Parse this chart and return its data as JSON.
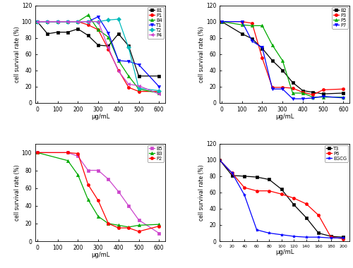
{
  "panel1": {
    "xlabel": "μg/mL",
    "ylabel": "cell survival rate (%)",
    "xlim": [
      -10,
      630
    ],
    "ylim": [
      0,
      120
    ],
    "xticks": [
      0,
      100,
      200,
      300,
      400,
      500,
      600
    ],
    "yticks": [
      0,
      20,
      40,
      60,
      80,
      100,
      120
    ],
    "series": [
      {
        "name": "B1",
        "x": [
          0,
          50,
          100,
          150,
          200,
          250,
          300,
          350,
          400,
          450,
          500,
          600
        ],
        "y": [
          100,
          85,
          87,
          87,
          91,
          83,
          71,
          70,
          85,
          70,
          33,
          33
        ],
        "color": "#000000",
        "marker": "s"
      },
      {
        "name": "P1",
        "x": [
          0,
          50,
          100,
          150,
          200,
          250,
          300,
          350,
          400,
          450,
          500,
          600
        ],
        "y": [
          100,
          100,
          100,
          100,
          100,
          96,
          90,
          66,
          40,
          19,
          14,
          14
        ],
        "color": "#ff0000",
        "marker": "o"
      },
      {
        "name": "B4",
        "x": [
          0,
          50,
          100,
          150,
          200,
          250,
          300,
          350,
          400,
          450,
          500,
          600
        ],
        "y": [
          100,
          100,
          100,
          100,
          100,
          108,
          90,
          81,
          52,
          33,
          17,
          12
        ],
        "color": "#00aa00",
        "marker": "^"
      },
      {
        "name": "T1",
        "x": [
          0,
          50,
          100,
          150,
          200,
          250,
          300,
          350,
          400,
          450,
          500,
          600
        ],
        "y": [
          100,
          100,
          100,
          100,
          100,
          100,
          106,
          86,
          52,
          51,
          47,
          20
        ],
        "color": "#0000ff",
        "marker": "v"
      },
      {
        "name": "T2",
        "x": [
          0,
          50,
          100,
          150,
          200,
          250,
          300,
          350,
          400,
          450,
          500,
          600
        ],
        "y": [
          100,
          100,
          100,
          100,
          100,
          100,
          100,
          102,
          103,
          68,
          18,
          15
        ],
        "color": "#00bbbb",
        "marker": "D"
      },
      {
        "name": "P4",
        "x": [
          0,
          50,
          100,
          150,
          200,
          250,
          300,
          350,
          400,
          450,
          500,
          600
        ],
        "y": [
          100,
          100,
          100,
          100,
          100,
          100,
          100,
          68,
          39,
          23,
          21,
          11
        ],
        "color": "#cc44cc",
        "marker": "<"
      }
    ]
  },
  "panel2": {
    "xlabel": "μg/mL",
    "ylabel": "cell survival rate (%)",
    "xlim": [
      -10,
      630
    ],
    "ylim": [
      0,
      120
    ],
    "xticks": [
      0,
      100,
      200,
      300,
      400,
      500,
      600
    ],
    "yticks": [
      0,
      20,
      40,
      60,
      80,
      100,
      120
    ],
    "series": [
      {
        "name": "B2",
        "x": [
          0,
          100,
          150,
          200,
          250,
          300,
          350,
          400,
          450,
          500,
          600
        ],
        "y": [
          100,
          85,
          79,
          67,
          52,
          40,
          25,
          15,
          13,
          11,
          12
        ],
        "color": "#000000",
        "marker": "s"
      },
      {
        "name": "P3",
        "x": [
          0,
          100,
          150,
          200,
          250,
          300,
          350,
          400,
          450,
          500,
          600
        ],
        "y": [
          100,
          100,
          98,
          55,
          19,
          19,
          18,
          13,
          10,
          16,
          17
        ],
        "color": "#ff0000",
        "marker": "o"
      },
      {
        "name": "P5",
        "x": [
          0,
          100,
          150,
          200,
          250,
          300,
          350,
          400,
          450,
          500,
          600
        ],
        "y": [
          100,
          96,
          95,
          95,
          71,
          52,
          12,
          12,
          7,
          7,
          7
        ],
        "color": "#00aa00",
        "marker": "^"
      },
      {
        "name": "P7",
        "x": [
          0,
          100,
          150,
          200,
          250,
          300,
          350,
          400,
          450,
          500,
          600
        ],
        "y": [
          100,
          100,
          76,
          68,
          17,
          17,
          5,
          5,
          6,
          8,
          6
        ],
        "color": "#0000ff",
        "marker": "v"
      }
    ]
  },
  "panel3": {
    "xlabel": "μg/mL",
    "ylabel": "cell survival rate (%)",
    "xlim": [
      -10,
      630
    ],
    "ylim": [
      0,
      110
    ],
    "xticks": [
      0,
      100,
      200,
      300,
      400,
      500,
      600
    ],
    "yticks": [
      0,
      20,
      40,
      60,
      80,
      100
    ],
    "series": [
      {
        "name": "B5",
        "x": [
          0,
          150,
          200,
          250,
          300,
          350,
          400,
          450,
          500,
          600
        ],
        "y": [
          100,
          100,
          96,
          80,
          80,
          70,
          56,
          40,
          24,
          9
        ],
        "color": "#cc44cc",
        "marker": "s"
      },
      {
        "name": "B3",
        "x": [
          0,
          150,
          200,
          250,
          300,
          350,
          400,
          450,
          500,
          600
        ],
        "y": [
          100,
          91,
          75,
          47,
          28,
          20,
          18,
          16,
          18,
          19
        ],
        "color": "#00aa00",
        "marker": "^"
      },
      {
        "name": "P2",
        "x": [
          0,
          150,
          200,
          250,
          300,
          350,
          400,
          450,
          500,
          600
        ],
        "y": [
          100,
          100,
          99,
          64,
          46,
          20,
          15,
          15,
          11,
          17
        ],
        "color": "#ff0000",
        "marker": "o"
      }
    ]
  },
  "panel4": {
    "xlabel": "μg/mL",
    "ylabel": "cell survival rate (%)",
    "xlim": [
      0,
      210
    ],
    "ylim": [
      0,
      120
    ],
    "xticks": [
      0,
      20,
      40,
      60,
      80,
      100,
      120,
      140,
      160,
      180,
      200
    ],
    "yticks": [
      0,
      20,
      40,
      60,
      80,
      100,
      120
    ],
    "series": [
      {
        "name": "T3",
        "x": [
          0,
          20,
          40,
          60,
          80,
          100,
          120,
          140,
          160,
          180,
          200
        ],
        "y": [
          100,
          81,
          80,
          79,
          76,
          64,
          45,
          29,
          10,
          6,
          5
        ],
        "color": "#000000",
        "marker": "s"
      },
      {
        "name": "P6",
        "x": [
          0,
          20,
          40,
          60,
          80,
          100,
          120,
          140,
          160,
          180,
          200
        ],
        "y": [
          100,
          84,
          66,
          62,
          62,
          58,
          53,
          46,
          32,
          5,
          3
        ],
        "color": "#ff0000",
        "marker": "o"
      },
      {
        "name": "EGCG",
        "x": [
          0,
          20,
          40,
          60,
          80,
          100,
          120,
          140,
          160,
          180,
          200
        ],
        "y": [
          100,
          84,
          57,
          14,
          10,
          8,
          6,
          5,
          5,
          4,
          4
        ],
        "color": "#0000ff",
        "marker": "*"
      }
    ]
  }
}
